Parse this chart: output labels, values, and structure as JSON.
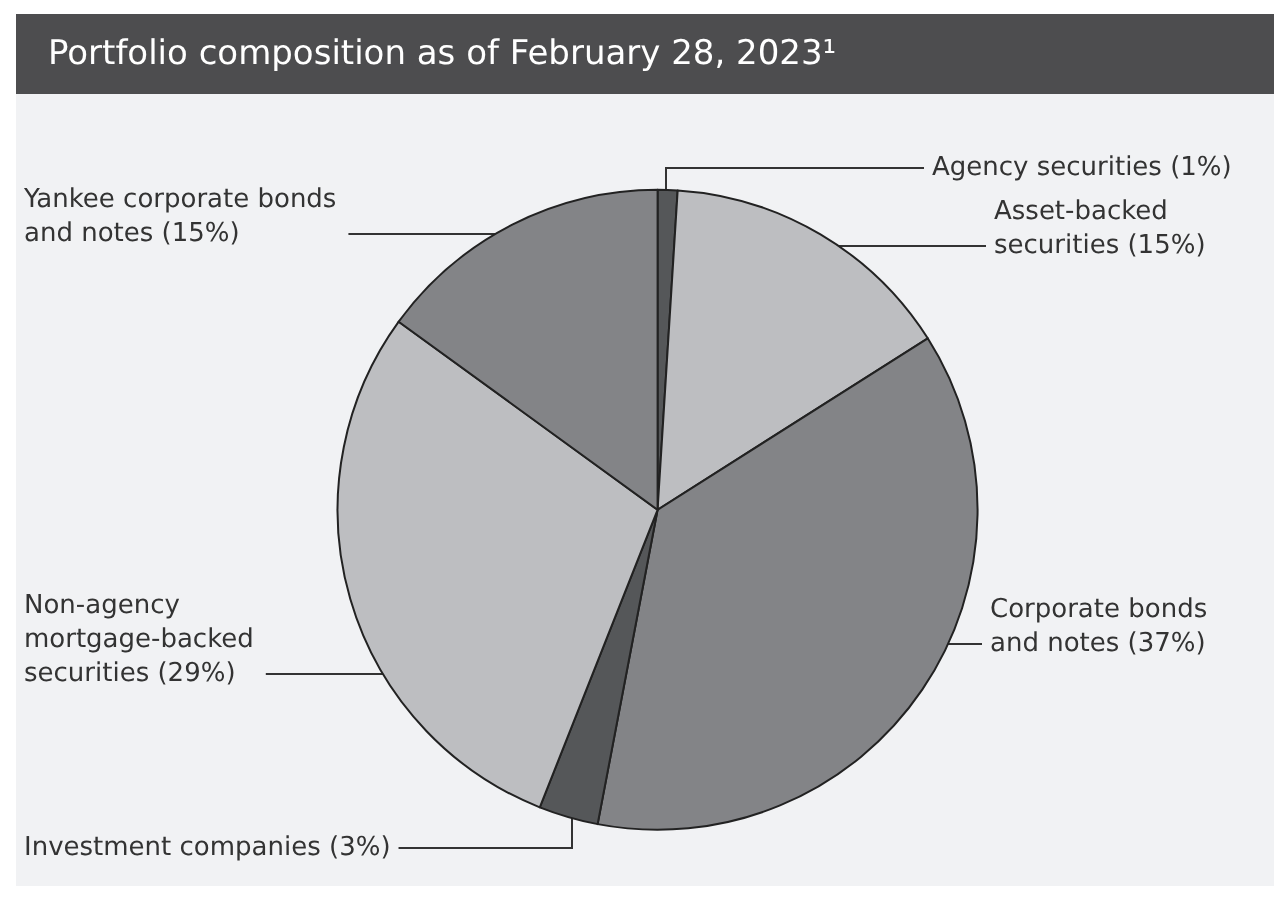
{
  "chart_data": {
    "type": "pie",
    "title": "Portfolio composition as of February 28, 2023¹",
    "categories": [
      "Agency securities",
      "Asset-backed\nsecurities",
      "Corporate bonds\nand notes",
      "Investment companies",
      "Non-agency\nmortgage-backed\nsecurities",
      "Yankee corporate bonds\nand notes"
    ],
    "values": [
      1,
      15,
      37,
      3,
      29,
      15
    ],
    "colors": [
      "#555759",
      "#bdbec1",
      "#838487",
      "#555759",
      "#bdbec1",
      "#838487"
    ],
    "value_labels": [
      "(1%)",
      "(15%)",
      "(37%)",
      "(3%)",
      "(29%)",
      "(15%)"
    ]
  }
}
